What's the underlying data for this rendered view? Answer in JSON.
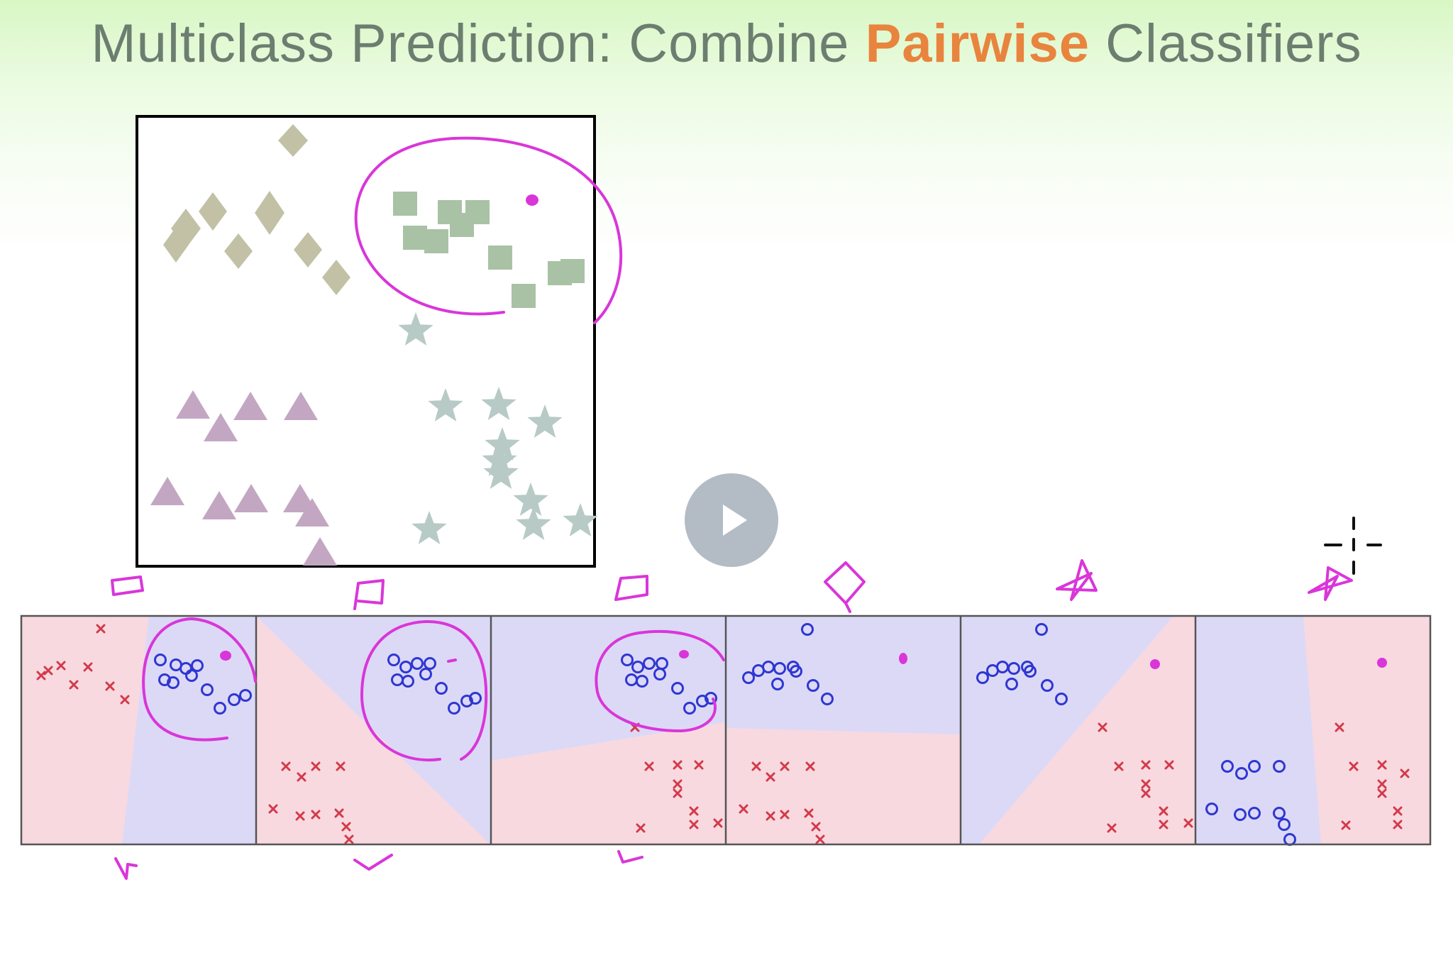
{
  "title": {
    "prefix": "Multiclass Prediction: Combine ",
    "highlight": "Pairwise",
    "suffix": " Classifiers",
    "highlight_color": "#e8843e",
    "text_color": "#6b7e70"
  },
  "colors": {
    "diamond": "#c2c1a6",
    "square": "#a9c2a5",
    "triangle": "#c3a7c2",
    "star": "#b7cac6",
    "ink": "#d936d9",
    "red_region": "#f8d9e0",
    "blue_region": "#dcd9f7",
    "x_marker": "#d33a4a",
    "o_marker": "#2f37d1"
  },
  "icons": [
    "play-icon",
    "crosshair-cursor-icon"
  ]
}
